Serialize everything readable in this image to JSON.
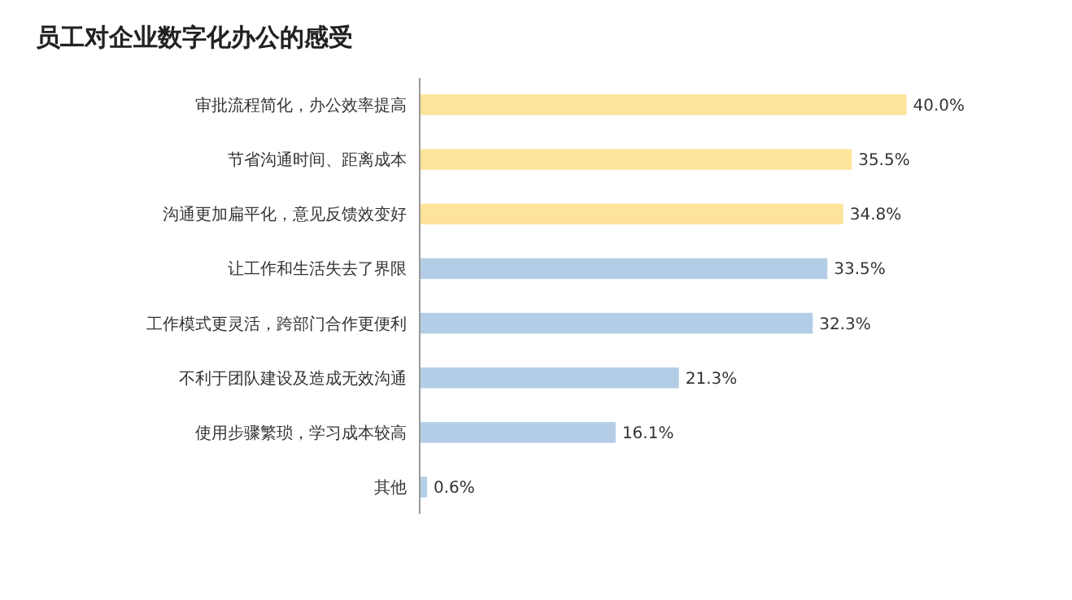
{
  "chart_data": {
    "type": "bar",
    "orientation": "horizontal",
    "title": "员工对企业数字化办公的感受",
    "categories": [
      "审批流程简化，办公效率提高",
      "节省沟通时间、距离成本",
      "沟通更加扁平化，意见反馈效变好",
      "让工作和生活失去了界限",
      "工作模式更灵活，跨部门合作更便利",
      "不利于团队建设及造成无效沟通",
      "使用步骤繁琐，学习成本较高",
      "其他"
    ],
    "values": [
      40.0,
      35.5,
      34.8,
      33.5,
      32.3,
      21.3,
      16.1,
      0.6
    ],
    "value_labels": [
      "40.0%",
      "35.5%",
      "34.8%",
      "33.5%",
      "32.3%",
      "21.3%",
      "16.1%",
      "0.6%"
    ],
    "colors": [
      "#fde49a",
      "#fde49a",
      "#fde49a",
      "#b4cde6",
      "#b4cde6",
      "#b4cde6",
      "#b4cde6",
      "#b4cde6"
    ]
  }
}
